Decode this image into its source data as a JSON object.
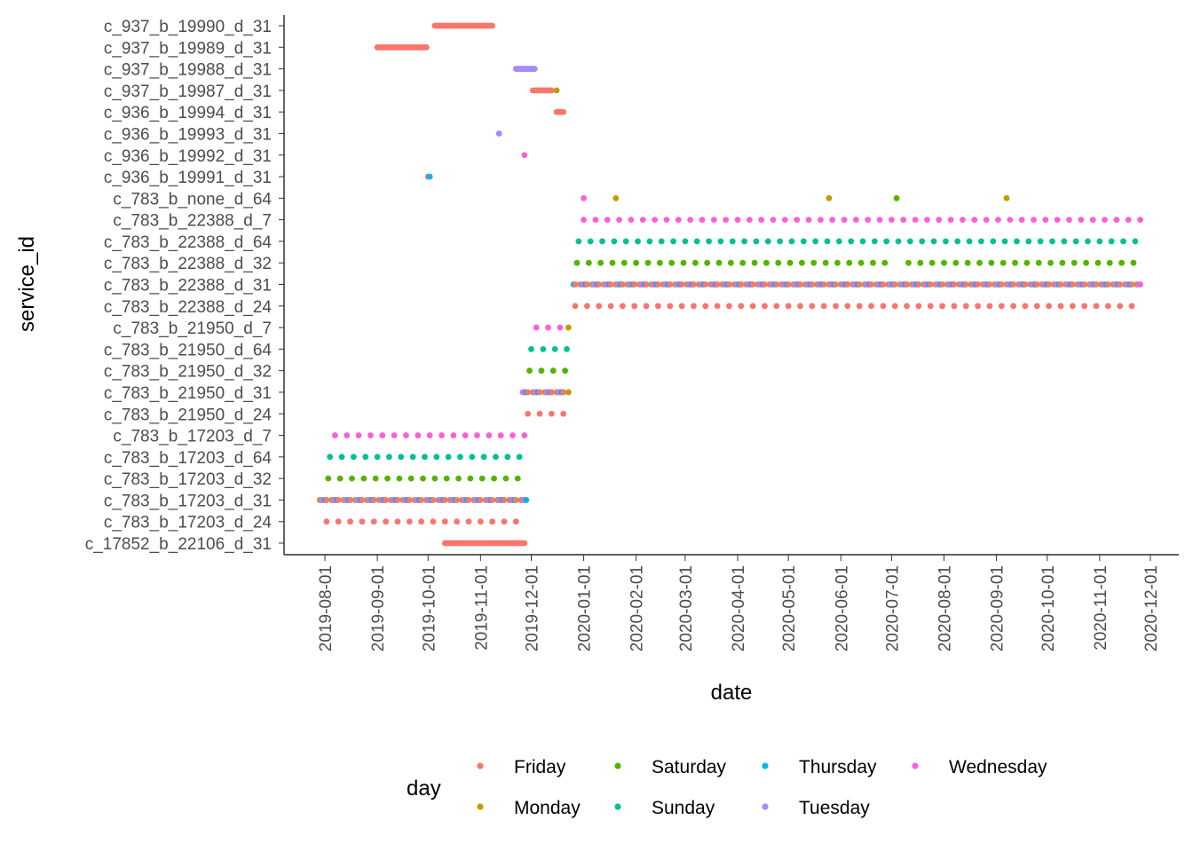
{
  "chart_data": {
    "type": "scatter",
    "title": "",
    "xlabel": "date",
    "ylabel": "service_id",
    "x_axis": {
      "type": "date",
      "range": [
        "2019-07-22",
        "2020-12-08"
      ],
      "ticks": [
        "2019-08-01",
        "2019-09-01",
        "2019-10-01",
        "2019-11-01",
        "2019-12-01",
        "2020-01-01",
        "2020-02-01",
        "2020-03-01",
        "2020-04-01",
        "2020-05-01",
        "2020-06-01",
        "2020-07-01",
        "2020-08-01",
        "2020-09-01",
        "2020-10-01",
        "2020-11-01",
        "2020-12-01"
      ]
    },
    "categories": [
      "c_17852_b_22106_d_31",
      "c_783_b_17203_d_24",
      "c_783_b_17203_d_31",
      "c_783_b_17203_d_32",
      "c_783_b_17203_d_64",
      "c_783_b_17203_d_7",
      "c_783_b_21950_d_24",
      "c_783_b_21950_d_31",
      "c_783_b_21950_d_32",
      "c_783_b_21950_d_64",
      "c_783_b_21950_d_7",
      "c_783_b_22388_d_24",
      "c_783_b_22388_d_31",
      "c_783_b_22388_d_32",
      "c_783_b_22388_d_64",
      "c_783_b_22388_d_7",
      "c_783_b_none_d_64",
      "c_936_b_19991_d_31",
      "c_936_b_19992_d_31",
      "c_936_b_19993_d_31",
      "c_936_b_19994_d_31",
      "c_937_b_19987_d_31",
      "c_937_b_19988_d_31",
      "c_937_b_19989_d_31",
      "c_937_b_19990_d_31"
    ],
    "grid": false,
    "legend": {
      "title": "day",
      "position": "bottom",
      "entries": [
        {
          "name": "Friday",
          "color": "#F8766D"
        },
        {
          "name": "Monday",
          "color": "#C49A00"
        },
        {
          "name": "Saturday",
          "color": "#53B400"
        },
        {
          "name": "Sunday",
          "color": "#00C094"
        },
        {
          "name": "Thursday",
          "color": "#00B6EB"
        },
        {
          "name": "Tuesday",
          "color": "#A58AFF"
        },
        {
          "name": "Wednesday",
          "color": "#FB61D7"
        }
      ]
    },
    "series": [
      {
        "category": "c_783_b_17203_d_24",
        "runs": [
          {
            "start": "2019-08-02",
            "end": "2019-11-22",
            "step": 7,
            "day": "Friday"
          }
        ]
      },
      {
        "category": "c_783_b_17203_d_31",
        "runs": [
          {
            "start": "2019-07-29",
            "end": "2019-11-25",
            "step": 7,
            "day": "Monday"
          },
          {
            "start": "2019-07-30",
            "end": "2019-11-26",
            "step": 7,
            "day": "Tuesday"
          },
          {
            "start": "2019-07-31",
            "end": "2019-11-27",
            "step": 7,
            "day": "Wednesday"
          },
          {
            "start": "2019-08-01",
            "end": "2019-11-28",
            "step": 7,
            "day": "Thursday"
          },
          {
            "start": "2019-08-02",
            "end": "2019-11-22",
            "step": 7,
            "day": "Friday"
          }
        ]
      },
      {
        "category": "c_783_b_17203_d_32",
        "runs": [
          {
            "start": "2019-08-03",
            "end": "2019-11-23",
            "step": 7,
            "day": "Saturday"
          }
        ]
      },
      {
        "category": "c_783_b_17203_d_64",
        "runs": [
          {
            "start": "2019-08-04",
            "end": "2019-11-24",
            "step": 7,
            "day": "Sunday"
          }
        ]
      },
      {
        "category": "c_783_b_17203_d_7",
        "runs": [
          {
            "start": "2019-08-07",
            "end": "2019-11-27",
            "step": 7,
            "day": "Wednesday"
          }
        ]
      },
      {
        "category": "c_783_b_21950_d_24",
        "runs": [
          {
            "start": "2019-11-29",
            "end": "2019-12-20",
            "step": 7,
            "day": "Friday"
          }
        ]
      },
      {
        "category": "c_783_b_21950_d_31",
        "runs": [
          {
            "start": "2019-12-02",
            "end": "2019-12-23",
            "step": 7,
            "day": "Monday"
          },
          {
            "start": "2019-11-26",
            "end": "2019-12-17",
            "step": 7,
            "day": "Tuesday"
          },
          {
            "start": "2019-11-27",
            "end": "2019-12-18",
            "step": 7,
            "day": "Wednesday"
          },
          {
            "start": "2019-11-28",
            "end": "2019-12-19",
            "step": 7,
            "day": "Thursday"
          },
          {
            "start": "2019-11-29",
            "end": "2019-12-20",
            "step": 7,
            "day": "Friday"
          }
        ]
      },
      {
        "category": "c_783_b_21950_d_32",
        "runs": [
          {
            "start": "2019-11-30",
            "end": "2019-12-21",
            "step": 7,
            "day": "Saturday"
          }
        ]
      },
      {
        "category": "c_783_b_21950_d_64",
        "runs": [
          {
            "start": "2019-12-01",
            "end": "2019-12-22",
            "step": 7,
            "day": "Sunday"
          }
        ]
      },
      {
        "category": "c_783_b_21950_d_7",
        "runs": [
          {
            "start": "2019-12-04",
            "end": "2019-12-18",
            "step": 7,
            "day": "Wednesday"
          },
          {
            "start": "2019-12-23",
            "end": "2019-12-23",
            "step": 7,
            "day": "Monday"
          }
        ]
      },
      {
        "category": "c_783_b_22388_d_24",
        "runs": [
          {
            "start": "2019-12-27",
            "end": "2020-11-20",
            "step": 7,
            "day": "Friday"
          }
        ]
      },
      {
        "category": "c_783_b_22388_d_31",
        "runs": [
          {
            "start": "2019-12-30",
            "end": "2020-11-23",
            "step": 7,
            "day": "Monday"
          },
          {
            "start": "2019-12-31",
            "end": "2020-11-24",
            "step": 7,
            "day": "Tuesday"
          },
          {
            "start": "2020-01-01",
            "end": "2020-11-25",
            "step": 7,
            "day": "Wednesday"
          },
          {
            "start": "2019-12-26",
            "end": "2020-11-19",
            "step": 7,
            "day": "Thursday"
          },
          {
            "start": "2019-12-27",
            "end": "2020-11-20",
            "step": 7,
            "day": "Friday"
          }
        ]
      },
      {
        "category": "c_783_b_22388_d_32",
        "runs": [
          {
            "start": "2019-12-28",
            "end": "2020-06-27",
            "step": 7,
            "day": "Saturday"
          },
          {
            "start": "2020-07-11",
            "end": "2020-11-21",
            "step": 7,
            "day": "Saturday"
          }
        ]
      },
      {
        "category": "c_783_b_22388_d_64",
        "runs": [
          {
            "start": "2019-12-29",
            "end": "2020-11-22",
            "step": 7,
            "day": "Sunday"
          }
        ]
      },
      {
        "category": "c_783_b_22388_d_7",
        "runs": [
          {
            "start": "2020-01-01",
            "end": "2020-11-25",
            "step": 7,
            "day": "Wednesday"
          }
        ]
      },
      {
        "category": "c_783_b_none_d_64",
        "points": [
          {
            "date": "2020-01-01",
            "day": "Wednesday"
          },
          {
            "date": "2020-01-20",
            "day": "Monday"
          },
          {
            "date": "2020-05-25",
            "day": "Monday"
          },
          {
            "date": "2020-07-04",
            "day": "Saturday"
          },
          {
            "date": "2020-09-07",
            "day": "Monday"
          }
        ]
      },
      {
        "category": "c_936_b_19991_d_31",
        "points": [
          {
            "date": "2019-10-01",
            "day": "Friday"
          },
          {
            "date": "2019-10-02",
            "day": "Thursday"
          }
        ]
      },
      {
        "category": "c_936_b_19992_d_31",
        "points": [
          {
            "date": "2019-11-27",
            "day": "Wednesday"
          }
        ]
      },
      {
        "category": "c_936_b_19993_d_31",
        "points": [
          {
            "date": "2019-11-12",
            "day": "Tuesday"
          }
        ]
      },
      {
        "category": "c_936_b_19994_d_31",
        "runs": [
          {
            "start": "2019-12-16",
            "end": "2019-12-20",
            "step": 1,
            "day": "Friday"
          }
        ]
      },
      {
        "category": "c_937_b_19987_d_31",
        "runs": [
          {
            "start": "2019-12-02",
            "end": "2019-12-13",
            "step": 1,
            "day": "Friday"
          },
          {
            "start": "2019-12-16",
            "end": "2019-12-16",
            "step": 1,
            "day": "Monday"
          }
        ]
      },
      {
        "category": "c_937_b_19988_d_31",
        "runs": [
          {
            "start": "2019-11-22",
            "end": "2019-12-03",
            "step": 1,
            "day": "Tuesday"
          }
        ]
      },
      {
        "category": "c_937_b_19989_d_31",
        "runs": [
          {
            "start": "2019-09-01",
            "end": "2019-09-30",
            "step": 1,
            "day": "Friday"
          }
        ]
      },
      {
        "category": "c_937_b_19990_d_31",
        "runs": [
          {
            "start": "2019-10-05",
            "end": "2019-11-08",
            "step": 1,
            "day": "Friday"
          }
        ]
      },
      {
        "category": "c_17852_b_22106_d_31",
        "runs": [
          {
            "start": "2019-10-11",
            "end": "2019-11-27",
            "step": 1,
            "day": "Friday"
          }
        ]
      }
    ]
  }
}
